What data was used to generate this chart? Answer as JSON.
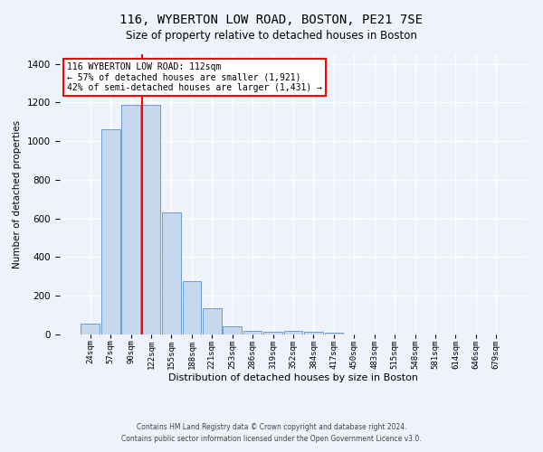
{
  "title_main": "116, WYBERTON LOW ROAD, BOSTON, PE21 7SE",
  "title_sub": "Size of property relative to detached houses in Boston",
  "xlabel": "Distribution of detached houses by size in Boston",
  "ylabel": "Number of detached properties",
  "categories": [
    "24sqm",
    "57sqm",
    "90sqm",
    "122sqm",
    "155sqm",
    "188sqm",
    "221sqm",
    "253sqm",
    "286sqm",
    "319sqm",
    "352sqm",
    "384sqm",
    "417sqm",
    "450sqm",
    "483sqm",
    "515sqm",
    "548sqm",
    "581sqm",
    "614sqm",
    "646sqm",
    "679sqm"
  ],
  "values": [
    55,
    1060,
    1190,
    1190,
    630,
    275,
    135,
    40,
    20,
    15,
    20,
    15,
    10,
    0,
    0,
    0,
    0,
    0,
    0,
    0,
    0
  ],
  "bar_color": "#c5d8ee",
  "bar_edge_color": "#5b8fcc",
  "red_line_index": 3,
  "red_line_label": "116 WYBERTON LOW ROAD: 112sqm",
  "annotation_line2": "← 57% of detached houses are smaller (1,921)",
  "annotation_line3": "42% of semi-detached houses are larger (1,431) →",
  "ylim": [
    0,
    1450
  ],
  "yticks": [
    0,
    200,
    400,
    600,
    800,
    1000,
    1200,
    1400
  ],
  "background_color": "#eef2fb",
  "grid_color": "#ffffff",
  "footer_line1": "Contains HM Land Registry data © Crown copyright and database right 2024.",
  "footer_line2": "Contains public sector information licensed under the Open Government Licence v3.0."
}
